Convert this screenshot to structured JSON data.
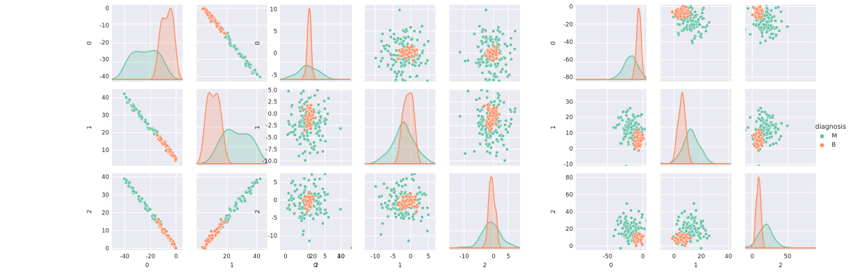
{
  "chart_data": [
    {
      "type": "scatter",
      "matrix": "pairplot",
      "variables": [
        "0",
        "1",
        "2"
      ],
      "hue": "diagnosis",
      "diag": "kde",
      "axes": [
        {
          "label": "0",
          "lim": [
            -50,
            5
          ],
          "ticks": [
            -40,
            -20,
            0
          ],
          "ylim": [
            -43,
            2
          ],
          "yticks": [
            -40,
            -30,
            -20,
            -10,
            0
          ]
        },
        {
          "label": "1",
          "lim": [
            0,
            47
          ],
          "ticks": [
            20,
            40
          ],
          "ylim": [
            1,
            45
          ],
          "yticks": [
            10,
            20,
            30,
            40
          ]
        },
        {
          "label": "2",
          "lim": [
            -3,
            48
          ],
          "ticks": [
            0,
            20,
            40
          ],
          "ylim": [
            -1,
            42
          ],
          "yticks": [
            0,
            10,
            20,
            30,
            40
          ]
        }
      ],
      "series": [
        {
          "name": "M",
          "color": "#66c2a5",
          "n": 60,
          "mean0": -22,
          "sd0": 7,
          "start0": -40,
          "end0": -8,
          "slope1": -0.9,
          "slope2": -0.95
        },
        {
          "name": "B",
          "color": "#fc8d62",
          "n": 50,
          "mean0": -8,
          "sd0": 2,
          "start0": -14,
          "end0": 0,
          "slope1": -0.9,
          "slope2": -0.95
        }
      ],
      "grid": true,
      "legend": "right"
    },
    {
      "type": "scatter",
      "matrix": "pairplot",
      "variables": [
        "0",
        "1",
        "2"
      ],
      "hue": "diagnosis",
      "diag": "kde",
      "axes": [
        {
          "label": "0",
          "lim": [
            -9,
            13
          ],
          "ticks": [
            0,
            5,
            10
          ],
          "ylim": [
            -6.5,
            11
          ],
          "yticks": [
            -5,
            0,
            5,
            10
          ]
        },
        {
          "label": "1",
          "lim": [
            -13,
            7
          ],
          "ticks": [
            -10,
            -5,
            0,
            5
          ],
          "ylim": [
            -11,
            5.2
          ],
          "yticks": [
            -10.0,
            -7.5,
            -5.0,
            -2.5,
            0.0,
            2.5,
            5.0
          ]
        },
        {
          "label": "2",
          "lim": [
            -15,
            9
          ],
          "ticks": [
            -10,
            0,
            5
          ],
          "ylim": [
            -14,
            7.5
          ],
          "yticks": [
            -10,
            -5,
            0,
            5
          ]
        }
      ],
      "series": [
        {
          "name": "M",
          "color": "#66c2a5",
          "n": 150,
          "mean": [
            0,
            -2,
            -1
          ],
          "sd": [
            3,
            3,
            3
          ]
        },
        {
          "name": "B",
          "color": "#fc8d62",
          "n": 80,
          "mean": [
            0,
            -0.5,
            -0.5
          ],
          "sd": [
            0.6,
            1.2,
            1.0
          ]
        }
      ],
      "grid": true,
      "legend": "right"
    },
    {
      "type": "scatter",
      "matrix": "pairplot",
      "variables": [
        "0",
        "1",
        "2"
      ],
      "hue": "diagnosis",
      "diag": "kde",
      "axes": [
        {
          "label": "0",
          "lim": [
            -95,
            5
          ],
          "ticks": [
            -50,
            0
          ],
          "ylim": [
            -85,
            2
          ],
          "yticks": [
            -80,
            -60,
            -40,
            -20,
            0
          ]
        },
        {
          "label": "1",
          "lim": [
            -10,
            42
          ],
          "ticks": [
            0,
            20,
            40
          ],
          "ylim": [
            -11,
            38
          ],
          "yticks": [
            -10,
            0,
            10,
            20,
            30
          ]
        },
        {
          "label": "2",
          "lim": [
            -10,
            90
          ],
          "ticks": [
            0,
            50
          ],
          "ylim": [
            -5,
            85
          ],
          "yticks": [
            0,
            20,
            40,
            60,
            80
          ]
        }
      ],
      "series": [
        {
          "name": "M",
          "color": "#66c2a5",
          "n": 110,
          "mean": [
            -18,
            13,
            18
          ],
          "sd": [
            10,
            6,
            10
          ]
        },
        {
          "name": "B",
          "color": "#fc8d62",
          "n": 80,
          "mean": [
            -6,
            6,
            8
          ],
          "sd": [
            3,
            2.5,
            3
          ]
        }
      ],
      "grid": true,
      "legend": "right"
    }
  ],
  "legend": {
    "title": "diagnosis",
    "items": [
      {
        "label": "M",
        "color": "#66c2a5"
      },
      {
        "label": "B",
        "color": "#fc8d62"
      }
    ]
  }
}
